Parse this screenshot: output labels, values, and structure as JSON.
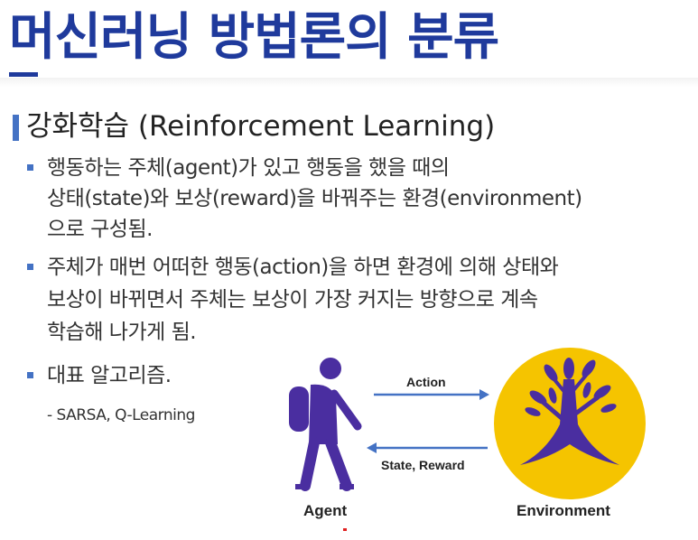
{
  "slide": {
    "title": "머신러닝 방법론의 분류",
    "section_title": "강화학습 (Reinforcement Learning)",
    "bullets": [
      {
        "lines": [
          "행동하는 주체(agent)가 있고 행동을 했을 때의",
          "상태(state)와 보상(reward)을 바꿔주는 환경(environment)",
          "으로 구성됨."
        ]
      },
      {
        "lines": [
          "주체가 매번 어떠한 행동(action)을 하면 환경에 의해 상태와",
          "보상이 바뀌면서 주체는 보상이 가장 커지는 방향으로 계속",
          "학습해 나가게 됨."
        ]
      },
      {
        "lines": [
          "대표 알고리즘."
        ]
      }
    ],
    "algorithms": "- SARSA, Q-Learning"
  },
  "diagram": {
    "agent_label": "Agent",
    "environment_label": "Environment",
    "action_label": "Action",
    "state_reward_label": "State, Reward",
    "agent_icon": "hiker-icon",
    "environment_icon": "tree-icon",
    "colors": {
      "agent": "#4a2ea0",
      "environment_circle": "#f5c400",
      "tree": "#4a2ea0",
      "arrows": "#4472c4",
      "title": "#1f3a9c",
      "bullet": "#4472c4"
    }
  }
}
